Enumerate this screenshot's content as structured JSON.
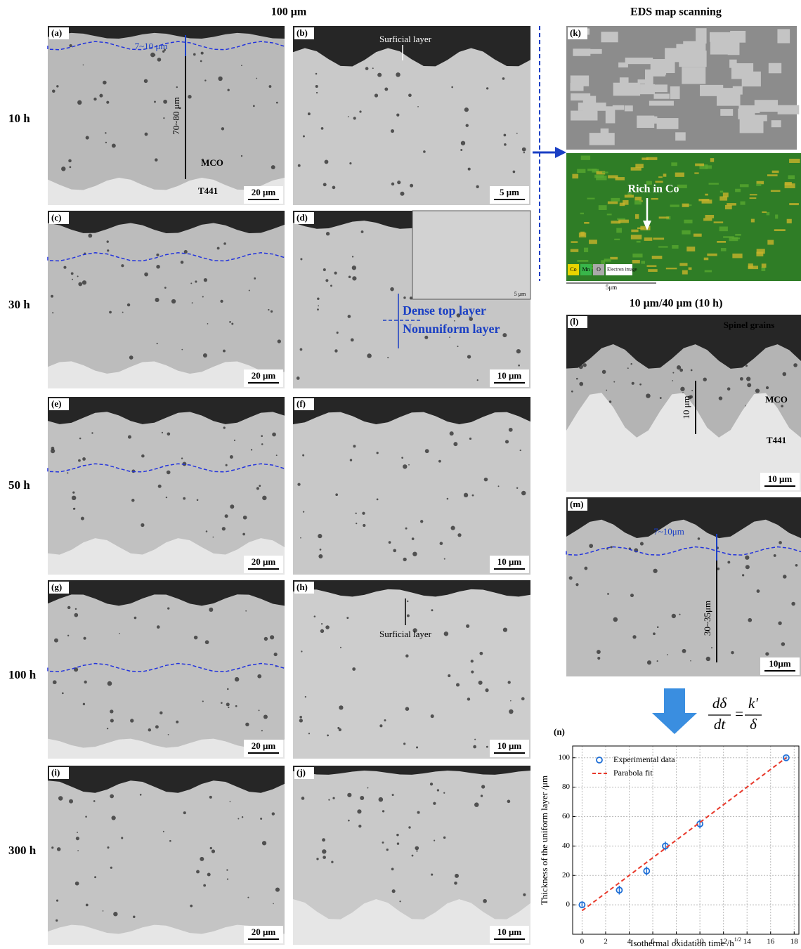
{
  "headers": {
    "col_100": "100 μm",
    "eds": "EDS map scanning",
    "l_m": "10 μm/40 μm (10 h)"
  },
  "rows": [
    "10 h",
    "30 h",
    "50 h",
    "100 h",
    "300 h"
  ],
  "panels": {
    "a": {
      "label": "(a)",
      "scale": "20 μm",
      "notes": [
        "7~10 μm",
        "70~80 μm",
        "MCO",
        "T441"
      ]
    },
    "b": {
      "label": "(b)",
      "scale": "5 μm",
      "notes": [
        "Surficial layer"
      ]
    },
    "c": {
      "label": "(c)",
      "scale": "20 μm"
    },
    "d": {
      "label": "(d)",
      "scale": "10 μm",
      "notes": [
        "5 μm",
        "Dense top layer",
        "Nonuniform layer"
      ]
    },
    "e": {
      "label": "(e)",
      "scale": "20 μm"
    },
    "f": {
      "label": "(f)",
      "scale": "10 μm"
    },
    "g": {
      "label": "(g)",
      "scale": "20 μm"
    },
    "h": {
      "label": "(h)",
      "scale": "10 μm",
      "notes": [
        "Surficial layer"
      ]
    },
    "i": {
      "label": "(i)",
      "scale": "20 μm"
    },
    "j": {
      "label": "(j)",
      "scale": "10 μm"
    },
    "k": {
      "label": "(k)",
      "notes": [
        "Rich in Co",
        "Co",
        "Mn",
        "O",
        "Electron image",
        "5μm"
      ]
    },
    "l": {
      "label": "(l)",
      "scale": "10 μm",
      "notes": [
        "Spinel grains",
        "10 μm",
        "MCO",
        "T441"
      ]
    },
    "m": {
      "label": "(m)",
      "scale": "10μm",
      "notes": [
        "7~10μm",
        "30~35μm"
      ]
    }
  },
  "equation": {
    "lhs_num": "dδ",
    "lhs_den": "dt",
    "eq": "=",
    "rhs_num": "k′",
    "rhs_den": "δ"
  },
  "chart_data": {
    "type": "scatter",
    "label": "(n)",
    "x_label": "Isothermal oxidation time /h",
    "x_label_sup": "1/2",
    "y_label": "Thickness of the uniform layer /μm",
    "series": [
      {
        "name": "Experimental data",
        "color": "#1f6fd6",
        "x": [
          0,
          3.16,
          5.48,
          7.07,
          10,
          17.32
        ],
        "values": [
          0,
          10,
          23,
          40,
          55,
          100
        ],
        "errors": [
          2,
          3,
          3,
          3,
          3,
          1
        ]
      },
      {
        "name": "Parabola fit",
        "color": "#e8392b",
        "x": [
          0,
          17.32
        ],
        "values": [
          -4,
          100
        ]
      }
    ],
    "xlim": [
      -0.8,
      18.4
    ],
    "ylim": [
      -20,
      108
    ],
    "xticks": [
      0,
      2,
      4,
      6,
      8,
      10,
      12,
      14,
      16,
      18
    ],
    "yticks": [
      0,
      20,
      40,
      60,
      80,
      100
    ],
    "grid": true,
    "legend": "upper left"
  }
}
